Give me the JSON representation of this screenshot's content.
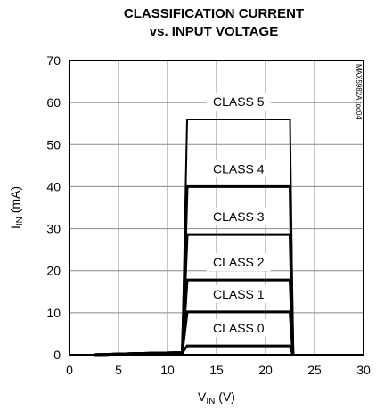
{
  "chart_data": {
    "type": "line",
    "title": [
      "CLASSIFICATION CURRENT",
      "vs. INPUT VOLTAGE"
    ],
    "xlabel": [
      "V",
      "IN",
      " (V)"
    ],
    "ylabel": [
      "I",
      "IN",
      " (mA)"
    ],
    "side_note": "MAX5982A toc04",
    "x": [
      2.5,
      7,
      11.5,
      12,
      22.5,
      22.8
    ],
    "series": [
      {
        "name": "CLASS 0",
        "color": "#000000",
        "width": 3,
        "values": [
          0,
          0.3,
          0.5,
          2.1,
          2.1,
          0
        ]
      },
      {
        "name": "CLASS 1",
        "color": "#000000",
        "width": 3,
        "values": [
          0,
          0.3,
          0.5,
          10.2,
          10.2,
          0
        ]
      },
      {
        "name": "CLASS 2",
        "color": "#000000",
        "width": 3,
        "values": [
          0,
          0.3,
          0.5,
          17.8,
          17.8,
          0
        ]
      },
      {
        "name": "CLASS 3",
        "color": "#000000",
        "width": 3,
        "values": [
          0,
          0.3,
          0.5,
          28.6,
          28.6,
          0
        ]
      },
      {
        "name": "CLASS 4",
        "color": "#000000",
        "width": 3,
        "values": [
          0,
          0.3,
          0.5,
          40,
          40,
          0
        ]
      },
      {
        "name": "CLASS 5",
        "color": "#000000",
        "width": 2,
        "values": [
          0,
          0.3,
          0.5,
          56,
          56,
          0
        ]
      }
    ],
    "xlim": [
      0,
      30
    ],
    "xticks": [
      0,
      5,
      10,
      15,
      20,
      25,
      30
    ],
    "ylim": [
      0,
      70
    ],
    "yticks": [
      0,
      10,
      20,
      30,
      40,
      50,
      60,
      70
    ],
    "grid": true
  }
}
